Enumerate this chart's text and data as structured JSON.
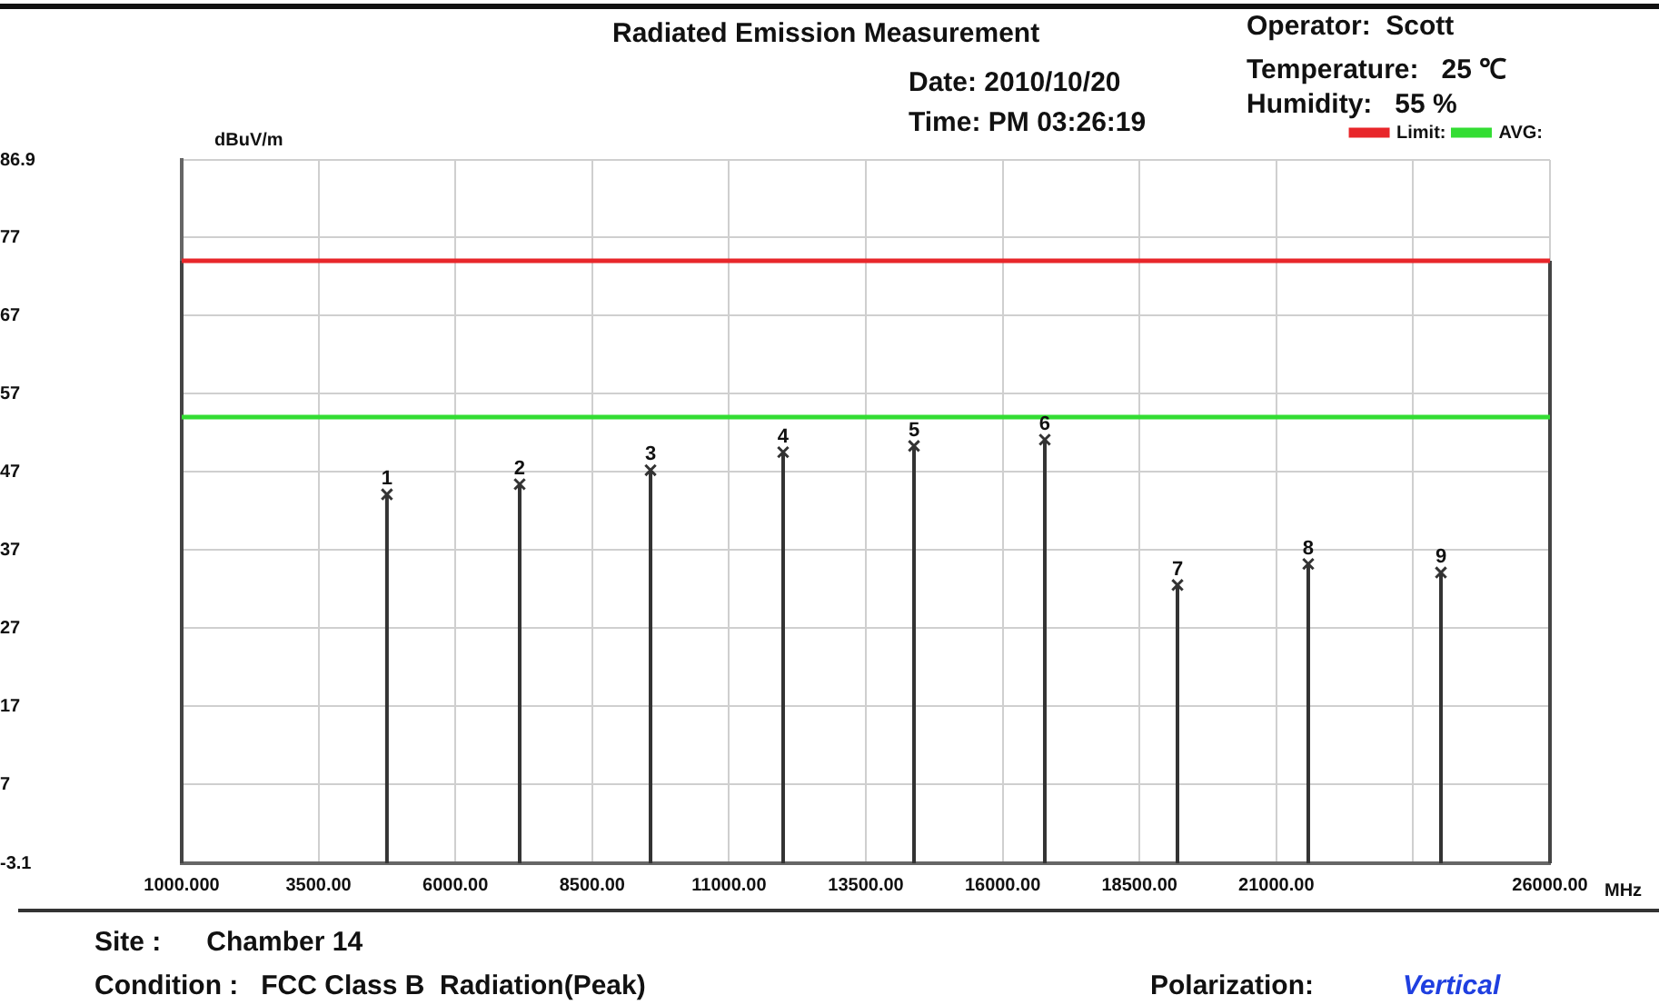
{
  "chart_data": {
    "type": "lollipop",
    "title": "Radiated Emission Measurement",
    "xlabel": "MHz",
    "ylabel": "dBuV/m",
    "annotations": [
      "Date: 2010/10/20",
      "Time: PM 03:26:19",
      "Operator:  Scott",
      "Temperature:   25 ℃",
      "Humidity:   55 %",
      "Site :      Chamber 14",
      "Condition :   FCC Class B  Radiation(Peak)",
      "Polarization:",
      "Vertical",
      {
        "text": "1",
        "x": 4750,
        "y": 44.1
      },
      {
        "text": "2",
        "x": 7175,
        "y": 45.4
      },
      {
        "text": "3",
        "x": 9566,
        "y": 47.2
      },
      {
        "text": "4",
        "x": 11989,
        "y": 49.5
      },
      {
        "text": "5",
        "x": 14380,
        "y": 50.3
      },
      {
        "text": "6",
        "x": 16770,
        "y": 51.1
      },
      {
        "text": "7",
        "x": 19194,
        "y": 32.5
      },
      {
        "text": "8",
        "x": 21584,
        "y": 35.2
      },
      {
        "text": "9",
        "x": 24008,
        "y": 34.1
      }
    ],
    "series": [
      {
        "color": "#333333",
        "x": [
          4750,
          7175,
          9566,
          11989,
          14380,
          16770,
          19194,
          21584,
          24008
        ],
        "values": [
          44.1,
          45.4,
          47.2,
          49.5,
          50.3,
          51.1,
          32.5,
          35.2,
          34.1
        ]
      }
    ],
    "marker": "cross",
    "xlim": [
      1000,
      26000
    ],
    "xticks": [
      {
        "value": 1000,
        "label": "1000.000"
      },
      {
        "value": 3500,
        "label": "3500.00"
      },
      {
        "value": 6000,
        "label": "6000.00"
      },
      {
        "value": 8500,
        "label": "8500.00"
      },
      {
        "value": 11000,
        "label": "11000.00"
      },
      {
        "value": 13500,
        "label": "13500.00"
      },
      {
        "value": 16000,
        "label": "16000.00"
      },
      {
        "value": 18500,
        "label": "18500.00"
      },
      {
        "value": 21000,
        "label": "21000.00"
      },
      {
        "value": 23500,
        "label": null
      },
      {
        "value": 26000,
        "label": "26000.00"
      }
    ],
    "ylim": [
      -3.1,
      86.9
    ],
    "yticks": [
      -3.1,
      7,
      17,
      27,
      37,
      47,
      57,
      67,
      77,
      86.9
    ],
    "ref_lines": [
      {
        "axis": "y",
        "value": 74,
        "label": "Limit:",
        "color": "#e8262a"
      },
      {
        "axis": "y",
        "value": 54,
        "label": "AVG:",
        "color": "#33dd33"
      }
    ],
    "grid": true,
    "legend": "top right"
  }
}
